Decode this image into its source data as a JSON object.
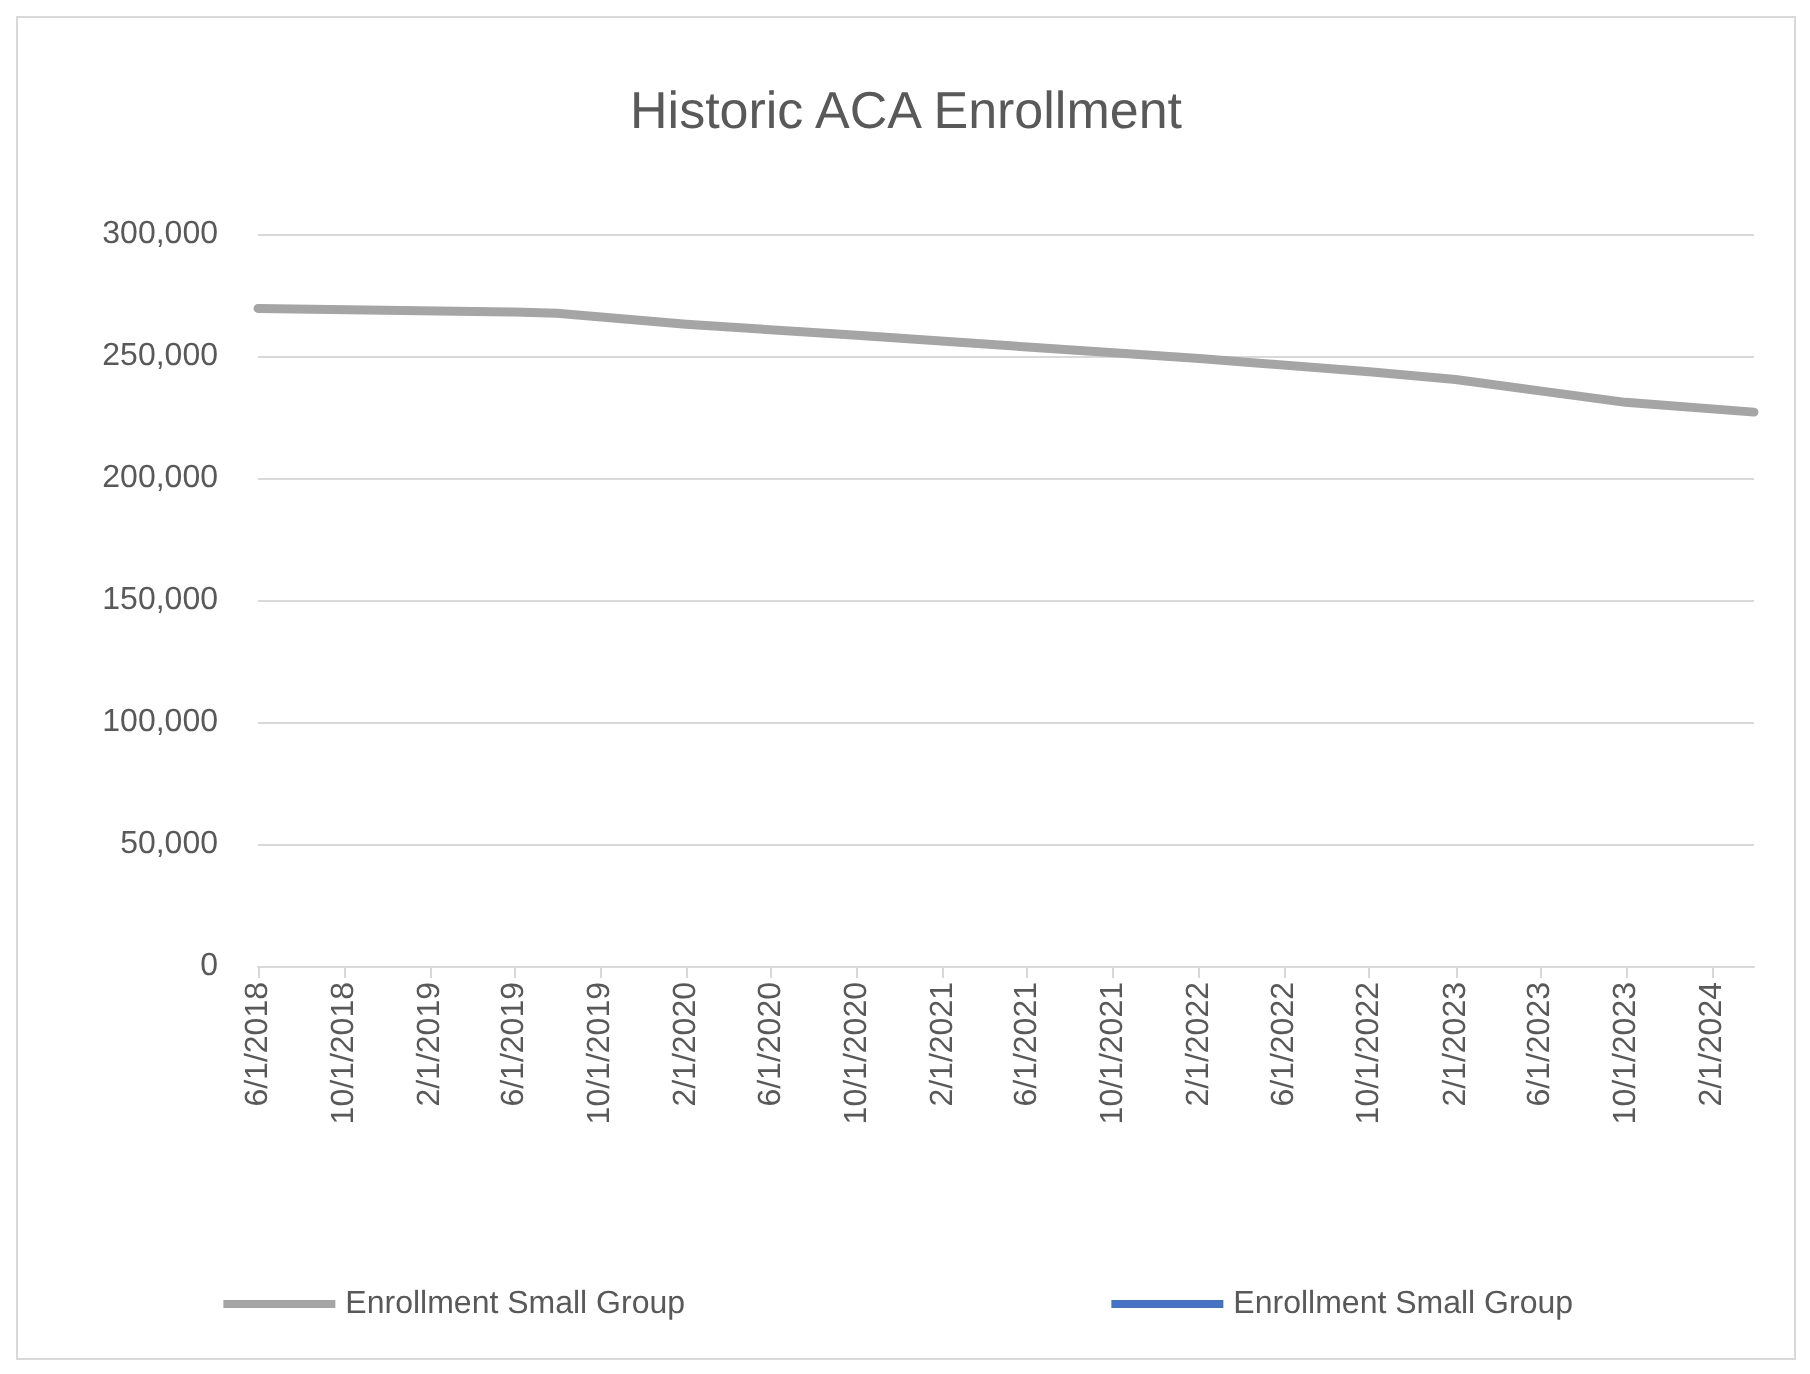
{
  "chart_data": {
    "type": "line",
    "title": "Historic ACA Enrollment",
    "x": [
      "2018-06-01",
      "2019-06-01",
      "2019-08-01",
      "2020-02-01",
      "2020-10-01",
      "2021-06-01",
      "2022-02-01",
      "2022-10-01",
      "2023-02-01",
      "2023-06-01",
      "2023-10-01",
      "2024-04-01"
    ],
    "series": [
      {
        "name": "Enrollment Small Group",
        "color": "#a5a5a5",
        "values": [
          269500,
          268000,
          267500,
          263000,
          258500,
          253700,
          249000,
          243500,
          240400,
          235700,
          231000,
          227000
        ]
      },
      {
        "name": "Enrollment Small Group",
        "color": "#4472c4",
        "values": [
          null,
          null,
          null,
          null,
          null,
          null,
          null,
          null,
          null,
          null,
          null,
          null
        ]
      }
    ],
    "xlim": [
      "2018-06-01",
      "2024-04-01"
    ],
    "xticks": [
      {
        "value": "2018-06-01",
        "label": "6/1/2018"
      },
      {
        "value": "2018-10-01",
        "label": "10/1/2018"
      },
      {
        "value": "2019-02-01",
        "label": "2/1/2019"
      },
      {
        "value": "2019-06-01",
        "label": "6/1/2019"
      },
      {
        "value": "2019-10-01",
        "label": "10/1/2019"
      },
      {
        "value": "2020-02-01",
        "label": "2/1/2020"
      },
      {
        "value": "2020-06-01",
        "label": "6/1/2020"
      },
      {
        "value": "2020-10-01",
        "label": "10/1/2020"
      },
      {
        "value": "2021-02-01",
        "label": "2/1/2021"
      },
      {
        "value": "2021-06-01",
        "label": "6/1/2021"
      },
      {
        "value": "2021-10-01",
        "label": "10/1/2021"
      },
      {
        "value": "2022-02-01",
        "label": "2/1/2022"
      },
      {
        "value": "2022-06-01",
        "label": "6/1/2022"
      },
      {
        "value": "2022-10-01",
        "label": "10/1/2022"
      },
      {
        "value": "2023-02-01",
        "label": "2/1/2023"
      },
      {
        "value": "2023-06-01",
        "label": "6/1/2023"
      },
      {
        "value": "2023-10-01",
        "label": "10/1/2023"
      },
      {
        "value": "2024-02-01",
        "label": "2/1/2024"
      }
    ],
    "ylim": [
      0,
      300000
    ],
    "yticks": [
      {
        "value": 0,
        "label": "0"
      },
      {
        "value": 50000,
        "label": "50,000"
      },
      {
        "value": 100000,
        "label": "100,000"
      },
      {
        "value": 150000,
        "label": "150,000"
      },
      {
        "value": 200000,
        "label": "200,000"
      },
      {
        "value": 250000,
        "label": "250,000"
      },
      {
        "value": 300000,
        "label": "300,000"
      }
    ],
    "grid": "y",
    "legend": "bottom",
    "marker": "none",
    "line_style": "solid"
  }
}
